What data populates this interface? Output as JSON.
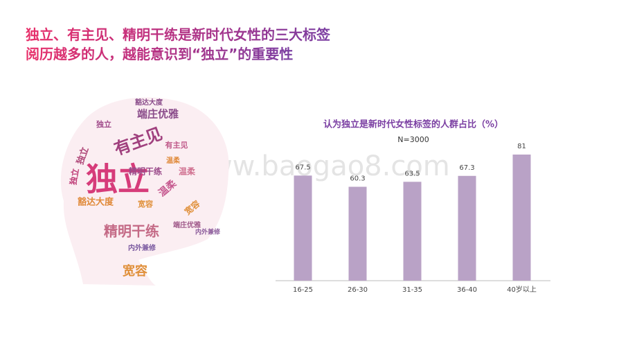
{
  "headline": [
    "独立、有主见、精明干练是新时代女性的三大标签",
    "阅历越多的人，越能意识到“独立”的重要性"
  ],
  "watermark": "www.baogao8.com",
  "word_cloud": [
    "独立",
    "有主见",
    "精明干练",
    "端庄优雅",
    "宽容",
    "豁达大度",
    "温柔",
    "内外兼修",
    "独立",
    "有主见",
    "温柔",
    "宽容",
    "精明干练",
    "端庄优雅",
    "豁达大度",
    "独立",
    "温柔",
    "内外兼修",
    "宽容",
    "独立"
  ],
  "chart_data": {
    "type": "bar",
    "title": "认为独立是新时代女性标签的人群占比（%）",
    "subtitle": "N=3000",
    "categories": [
      "16-25",
      "26-30",
      "31-35",
      "36-40",
      "40岁以上"
    ],
    "values": [
      67.5,
      60.3,
      63.5,
      67.3,
      81
    ],
    "color": "#b9a2c6"
  }
}
